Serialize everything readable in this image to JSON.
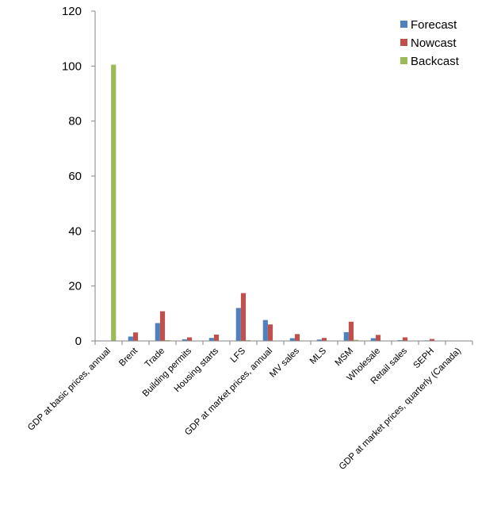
{
  "chart_data": {
    "type": "bar",
    "categories": [
      "GDP at basic prices, annual",
      "Brent",
      "Trade",
      "Building permits",
      "Housing starts",
      "LFS",
      "GDP at market prices, annual",
      "MV sales",
      "MLS",
      "MSM",
      "Wholesale",
      "Retail sales",
      "SEPH",
      "GDP at market prices, quarterly (Canada)"
    ],
    "series": [
      {
        "name": "Forecast",
        "color": "#4F81BD",
        "values": [
          0,
          1.6,
          6.5,
          0.6,
          1.1,
          12.0,
          7.6,
          1.0,
          0.5,
          3.2,
          1.0,
          0.3,
          0.2,
          0
        ]
      },
      {
        "name": "Nowcast",
        "color": "#C0504D",
        "values": [
          0,
          3.1,
          10.8,
          1.3,
          2.3,
          17.4,
          6.0,
          2.5,
          1.1,
          7.0,
          2.2,
          1.3,
          0.7,
          0
        ]
      },
      {
        "name": "Backcast",
        "color": "#9BBB59",
        "values": [
          100.5,
          0,
          0.3,
          0,
          0,
          0.3,
          0,
          0,
          0,
          0.4,
          0,
          0,
          0,
          0
        ]
      }
    ],
    "yticks": [
      0,
      20,
      40,
      60,
      80,
      100,
      120
    ],
    "ylim": [
      0,
      120
    ],
    "legend_position": "top-right",
    "grid": false,
    "title": "",
    "xlabel": "",
    "ylabel": ""
  }
}
